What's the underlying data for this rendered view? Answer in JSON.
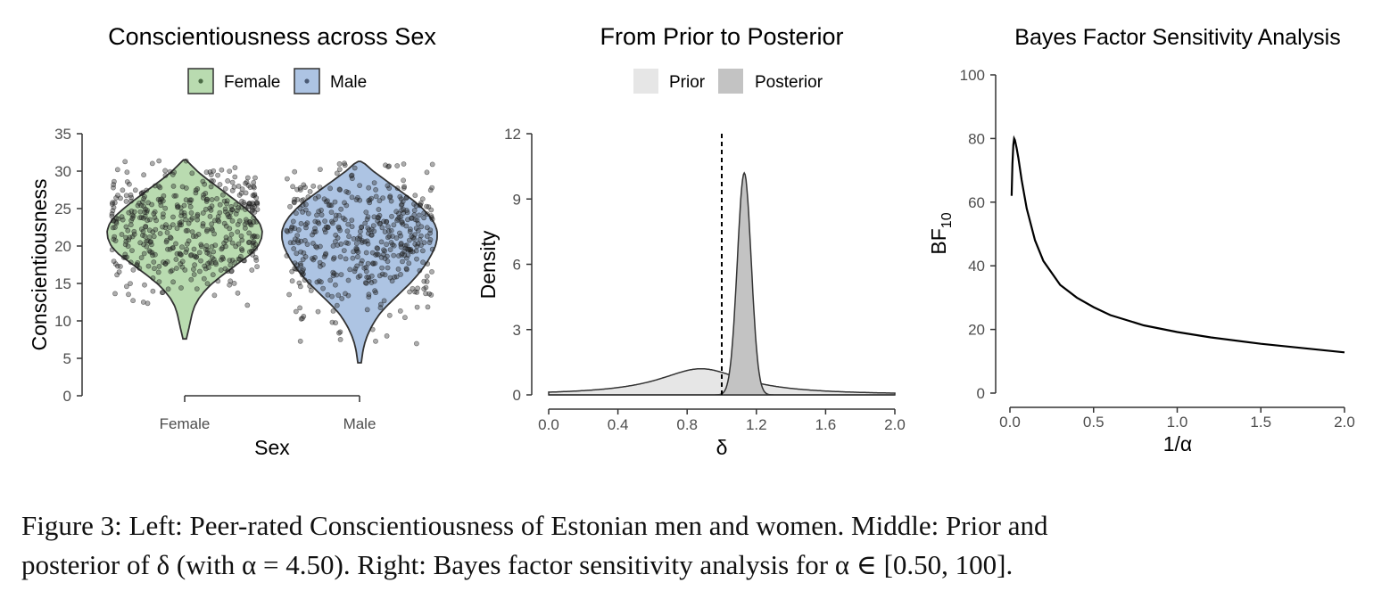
{
  "caption": {
    "line1": "Figure 3: Left: Peer-rated Conscientiousness of Estonian men and women. Middle: Prior and",
    "line2": "posterior of δ (with α = 4.50). Right: Bayes factor sensitivity analysis for α ∈ [0.50, 100]."
  },
  "chart_data": [
    {
      "type": "violin",
      "title": "Conscientiousness across Sex",
      "xlabel": "Sex",
      "ylabel": "Conscientiousness",
      "categories": [
        "Female",
        "Male"
      ],
      "ylim": [
        0,
        35
      ],
      "yticks": [
        0,
        5,
        10,
        15,
        20,
        25,
        30,
        35
      ],
      "legend": {
        "position": "top",
        "entries": [
          "Female",
          "Male"
        ]
      },
      "colors": {
        "Female": "#b9dbb0",
        "Male": "#adc4e3",
        "points": "#333333"
      },
      "series": [
        {
          "name": "Female",
          "range": [
            7.6,
            31.5
          ],
          "density": [
            [
              7.6,
              0.2
            ],
            [
              9,
              0.5
            ],
            [
              10,
              0.7
            ],
            [
              11,
              0.9
            ],
            [
              12,
              1.2
            ],
            [
              13,
              1.7
            ],
            [
              14,
              2.4
            ],
            [
              15,
              3.3
            ],
            [
              16,
              4.4
            ],
            [
              17,
              5.6
            ],
            [
              18,
              6.8
            ],
            [
              19,
              8.0
            ],
            [
              20,
              8.8
            ],
            [
              21,
              9.2
            ],
            [
              22,
              9.3
            ],
            [
              23,
              9.0
            ],
            [
              24,
              8.3
            ],
            [
              25,
              7.3
            ],
            [
              26,
              6.2
            ],
            [
              27,
              5.0
            ],
            [
              28,
              3.8
            ],
            [
              29,
              2.6
            ],
            [
              30,
              1.5
            ],
            [
              31,
              0.6
            ],
            [
              31.5,
              0.15
            ]
          ]
        },
        {
          "name": "Male",
          "range": [
            4.4,
            31.3
          ],
          "density": [
            [
              4.4,
              0.2
            ],
            [
              6,
              0.4
            ],
            [
              7,
              0.6
            ],
            [
              8,
              0.9
            ],
            [
              9,
              1.3
            ],
            [
              10,
              1.8
            ],
            [
              11,
              2.4
            ],
            [
              12,
              3.2
            ],
            [
              13,
              4.1
            ],
            [
              14,
              5.0
            ],
            [
              15,
              5.9
            ],
            [
              16,
              6.7
            ],
            [
              17,
              7.4
            ],
            [
              18,
              8.0
            ],
            [
              19,
              8.5
            ],
            [
              20,
              8.9
            ],
            [
              21,
              9.1
            ],
            [
              22,
              9.1
            ],
            [
              23,
              8.8
            ],
            [
              24,
              8.2
            ],
            [
              25,
              7.4
            ],
            [
              26,
              6.4
            ],
            [
              27,
              5.2
            ],
            [
              28,
              4.0
            ],
            [
              29,
              2.8
            ],
            [
              30,
              1.6
            ],
            [
              31,
              0.6
            ],
            [
              31.3,
              0.15
            ]
          ]
        }
      ]
    },
    {
      "type": "area",
      "title": "From Prior to Posterior",
      "xlabel": "δ",
      "ylabel": "Density",
      "xlim": [
        0,
        2
      ],
      "ylim": [
        0,
        12
      ],
      "xticks": [
        "0.0",
        "0.4",
        "0.8",
        "1.2",
        "1.6",
        "2.0"
      ],
      "yticks": [
        "0",
        "3",
        "6",
        "9",
        "12"
      ],
      "legend": {
        "position": "top",
        "entries": [
          "Prior",
          "Posterior"
        ]
      },
      "colors": {
        "Prior": "#e6e6e6",
        "Posterior": "#c3c3c3"
      },
      "reference_line": {
        "x": 1.0,
        "style": "dashed"
      },
      "series": [
        {
          "name": "Prior",
          "distribution": "cauchy",
          "peak": {
            "x": 0.88,
            "y": 1.2
          }
        },
        {
          "name": "Posterior",
          "distribution": "normal",
          "peak": {
            "x": 1.13,
            "y": 10.2
          }
        }
      ]
    },
    {
      "type": "line",
      "title": "Bayes Factor Sensitivity Analysis",
      "xlabel": "1/α",
      "ylabel_main": "BF",
      "ylabel_sub": "10",
      "xlim": [
        0,
        2
      ],
      "ylim": [
        0,
        100
      ],
      "xticks": [
        "0.0",
        "0.5",
        "1.0",
        "1.5",
        "2.0"
      ],
      "yticks": [
        "0",
        "20",
        "40",
        "60",
        "80",
        "100"
      ],
      "colors": {
        "line": "#000000"
      },
      "series": [
        {
          "x": [
            0.01,
            0.015,
            0.02,
            0.025,
            0.03,
            0.04,
            0.05,
            0.07,
            0.1,
            0.15,
            0.2,
            0.3,
            0.4,
            0.5,
            0.6,
            0.8,
            1.0,
            1.2,
            1.5,
            2.0
          ],
          "y": [
            62,
            72,
            78,
            80,
            79.5,
            77,
            74,
            67,
            58,
            48,
            41.5,
            34,
            30,
            27,
            24.5,
            21.3,
            19.2,
            17.5,
            15.5,
            12.8
          ]
        }
      ]
    }
  ]
}
